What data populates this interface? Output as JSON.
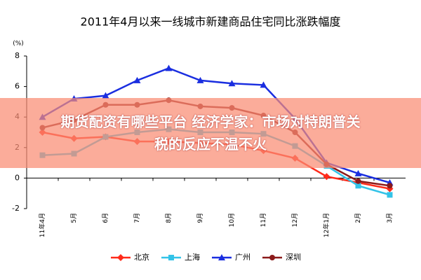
{
  "chart_data": {
    "type": "line",
    "title": "2011年4月以来一线城市新建商品住宅同比涨跌幅度",
    "y_label": "(%)",
    "categories": [
      "11年4月",
      "5月",
      "6月",
      "7月",
      "8月",
      "9月",
      "10月",
      "11月",
      "12月",
      "12年1月",
      "2月",
      "3月"
    ],
    "series": [
      {
        "name": "北京",
        "color": "#ff2a1a",
        "marker": "diamond",
        "values": [
          3.0,
          2.6,
          2.7,
          2.4,
          2.4,
          2.3,
          2.2,
          1.8,
          1.3,
          0.1,
          -0.3,
          -0.7
        ]
      },
      {
        "name": "上海",
        "color": "#33c3e8",
        "marker": "square",
        "values": [
          1.5,
          1.6,
          2.7,
          3.0,
          3.2,
          3.0,
          3.0,
          2.9,
          2.1,
          0.8,
          -0.5,
          -1.1
        ]
      },
      {
        "name": "广州",
        "color": "#1a2ee0",
        "marker": "triangle",
        "values": [
          4.0,
          5.2,
          5.4,
          6.4,
          7.2,
          6.4,
          6.2,
          6.1,
          3.9,
          1.0,
          0.3,
          -0.3
        ]
      },
      {
        "name": "深圳",
        "color": "#8b1a1a",
        "marker": "circle",
        "values": [
          3.3,
          3.8,
          4.8,
          4.8,
          5.1,
          4.7,
          4.6,
          4.1,
          3.0,
          0.9,
          -0.2,
          -0.5
        ]
      }
    ],
    "ylim": [
      -2,
      8
    ],
    "yticks": [
      -2,
      0,
      2,
      4,
      6,
      8
    ],
    "grid": false
  },
  "overlay": {
    "banner": [
      "期货配资有哪些平台 经济学家：市场对特朗普关",
      "税的反应不温不火"
    ]
  }
}
